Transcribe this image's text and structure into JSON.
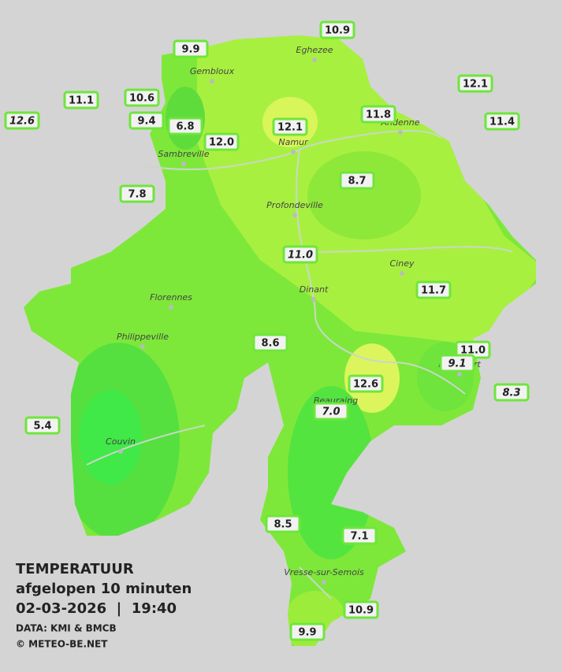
{
  "title": {
    "lines": [
      "TEMPERATUUR",
      "afgelopen 10 minuten",
      "02-03-2026  |  19:40"
    ],
    "credits": [
      "DATA: KMI & BMCB",
      "© METEO-BE.NET"
    ]
  },
  "cities": [
    "Eghezee",
    "Gembloux",
    "Andenne",
    "Namur",
    "Sambreville",
    "Profondeville",
    "Ciney",
    "Dinant",
    "Florennes",
    "Philippeville",
    "Rochefort",
    "Beauraing",
    "Couvin",
    "Vresse-sur-Semois"
  ],
  "stations": [
    {
      "value": "10.9"
    },
    {
      "value": "9.9"
    },
    {
      "value": "12.1"
    },
    {
      "value": "11.1"
    },
    {
      "value": "10.6"
    },
    {
      "value": "12.6",
      "italic": true
    },
    {
      "value": "9.4"
    },
    {
      "value": "6.8"
    },
    {
      "value": "12.1"
    },
    {
      "value": "11.8"
    },
    {
      "value": "11.4"
    },
    {
      "value": "12.0"
    },
    {
      "value": "7.8"
    },
    {
      "value": "8.7"
    },
    {
      "value": "11.0",
      "italic": true
    },
    {
      "value": "11.7"
    },
    {
      "value": "8.6"
    },
    {
      "value": "11.0"
    },
    {
      "value": "9.1",
      "italic": true
    },
    {
      "value": "12.6"
    },
    {
      "value": "8.3",
      "italic": true
    },
    {
      "value": "7.0",
      "italic": true
    },
    {
      "value": "5.4"
    },
    {
      "value": "8.5"
    },
    {
      "value": "7.1"
    },
    {
      "value": "10.9"
    },
    {
      "value": "9.9"
    }
  ]
}
